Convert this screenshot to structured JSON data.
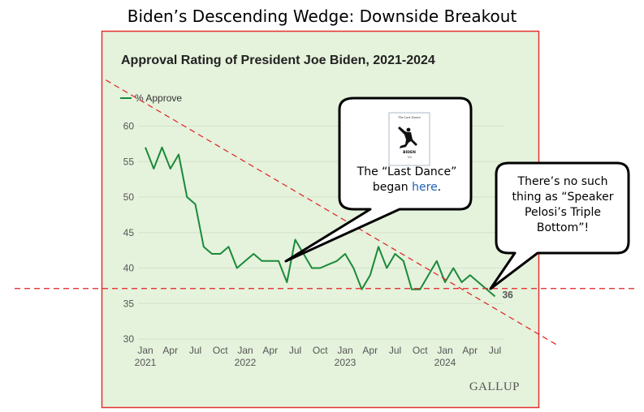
{
  "page_title": "Biden’s Descending Wedge: Downside Breakout",
  "callouts": {
    "last_dance": {
      "prefix": "The “Last Dance”",
      "line2": "began ",
      "link": "here",
      "suffix": ".",
      "poster_title": "The Last Dance",
      "poster_name": "BIDEN",
      "poster_year": "'20"
    },
    "pelosi": {
      "line1": "There’s no such",
      "line2": "thing as “Speaker",
      "line3": "Pelosi’s Triple",
      "line4": "Bottom”!"
    }
  },
  "colors": {
    "panel_bg": "#e5f2dc",
    "panel_border": "#e53030",
    "series": "#1a8a3a",
    "trendline": "#e02020",
    "grid": "#d4e2cb",
    "tick_text": "#555555",
    "link": "#1f5fb4"
  },
  "chart_data": {
    "type": "line",
    "title": "Approval Rating of President Joe Biden, 2021-2024",
    "source": "GALLUP",
    "xlabel": "",
    "ylabel": "",
    "ylim": [
      30,
      60
    ],
    "yticks": [
      30,
      35,
      40,
      45,
      50,
      55,
      60
    ],
    "grid": true,
    "legend_position": "top-left",
    "x_ticks": [
      {
        "month": 1,
        "label": "Jan",
        "year_label": "2021"
      },
      {
        "month": 4,
        "label": "Apr",
        "year_label": ""
      },
      {
        "month": 7,
        "label": "Jul",
        "year_label": ""
      },
      {
        "month": 10,
        "label": "Oct",
        "year_label": ""
      },
      {
        "month": 13,
        "label": "Jan",
        "year_label": "2022"
      },
      {
        "month": 16,
        "label": "Apr",
        "year_label": ""
      },
      {
        "month": 19,
        "label": "Jul",
        "year_label": ""
      },
      {
        "month": 22,
        "label": "Oct",
        "year_label": ""
      },
      {
        "month": 25,
        "label": "Jan",
        "year_label": "2023"
      },
      {
        "month": 28,
        "label": "Apr",
        "year_label": ""
      },
      {
        "month": 31,
        "label": "Jul",
        "year_label": ""
      },
      {
        "month": 34,
        "label": "Oct",
        "year_label": ""
      },
      {
        "month": 37,
        "label": "Jan",
        "year_label": "2024"
      },
      {
        "month": 40,
        "label": "Apr",
        "year_label": ""
      },
      {
        "month": 43,
        "label": "Jul",
        "year_label": ""
      }
    ],
    "series": [
      {
        "name": "% Approve",
        "x": [
          1,
          2,
          3,
          4,
          5,
          6,
          7,
          8,
          9,
          10,
          11,
          12,
          13,
          14,
          15,
          16,
          17,
          18,
          19,
          20,
          21,
          22,
          23,
          24,
          25,
          26,
          27,
          28,
          29,
          30,
          31,
          32,
          33,
          34,
          35,
          36,
          37,
          38,
          39,
          40,
          41,
          42,
          43
        ],
        "values": [
          57,
          54,
          57,
          54,
          56,
          50,
          49,
          43,
          42,
          42,
          43,
          40,
          41,
          42,
          41,
          41,
          41,
          38,
          44,
          42,
          40,
          40,
          40.5,
          41,
          42,
          40,
          37,
          39,
          43,
          40,
          42,
          41,
          37,
          37,
          39,
          41,
          38,
          40,
          38,
          39,
          38,
          37,
          36
        ],
        "end_label": "36"
      }
    ],
    "annotations": {
      "trendline_upper": {
        "x": [
          -2,
          46
        ],
        "y": [
          66.5,
          33.0
        ]
      },
      "support_line": {
        "y": 37.0
      }
    }
  }
}
